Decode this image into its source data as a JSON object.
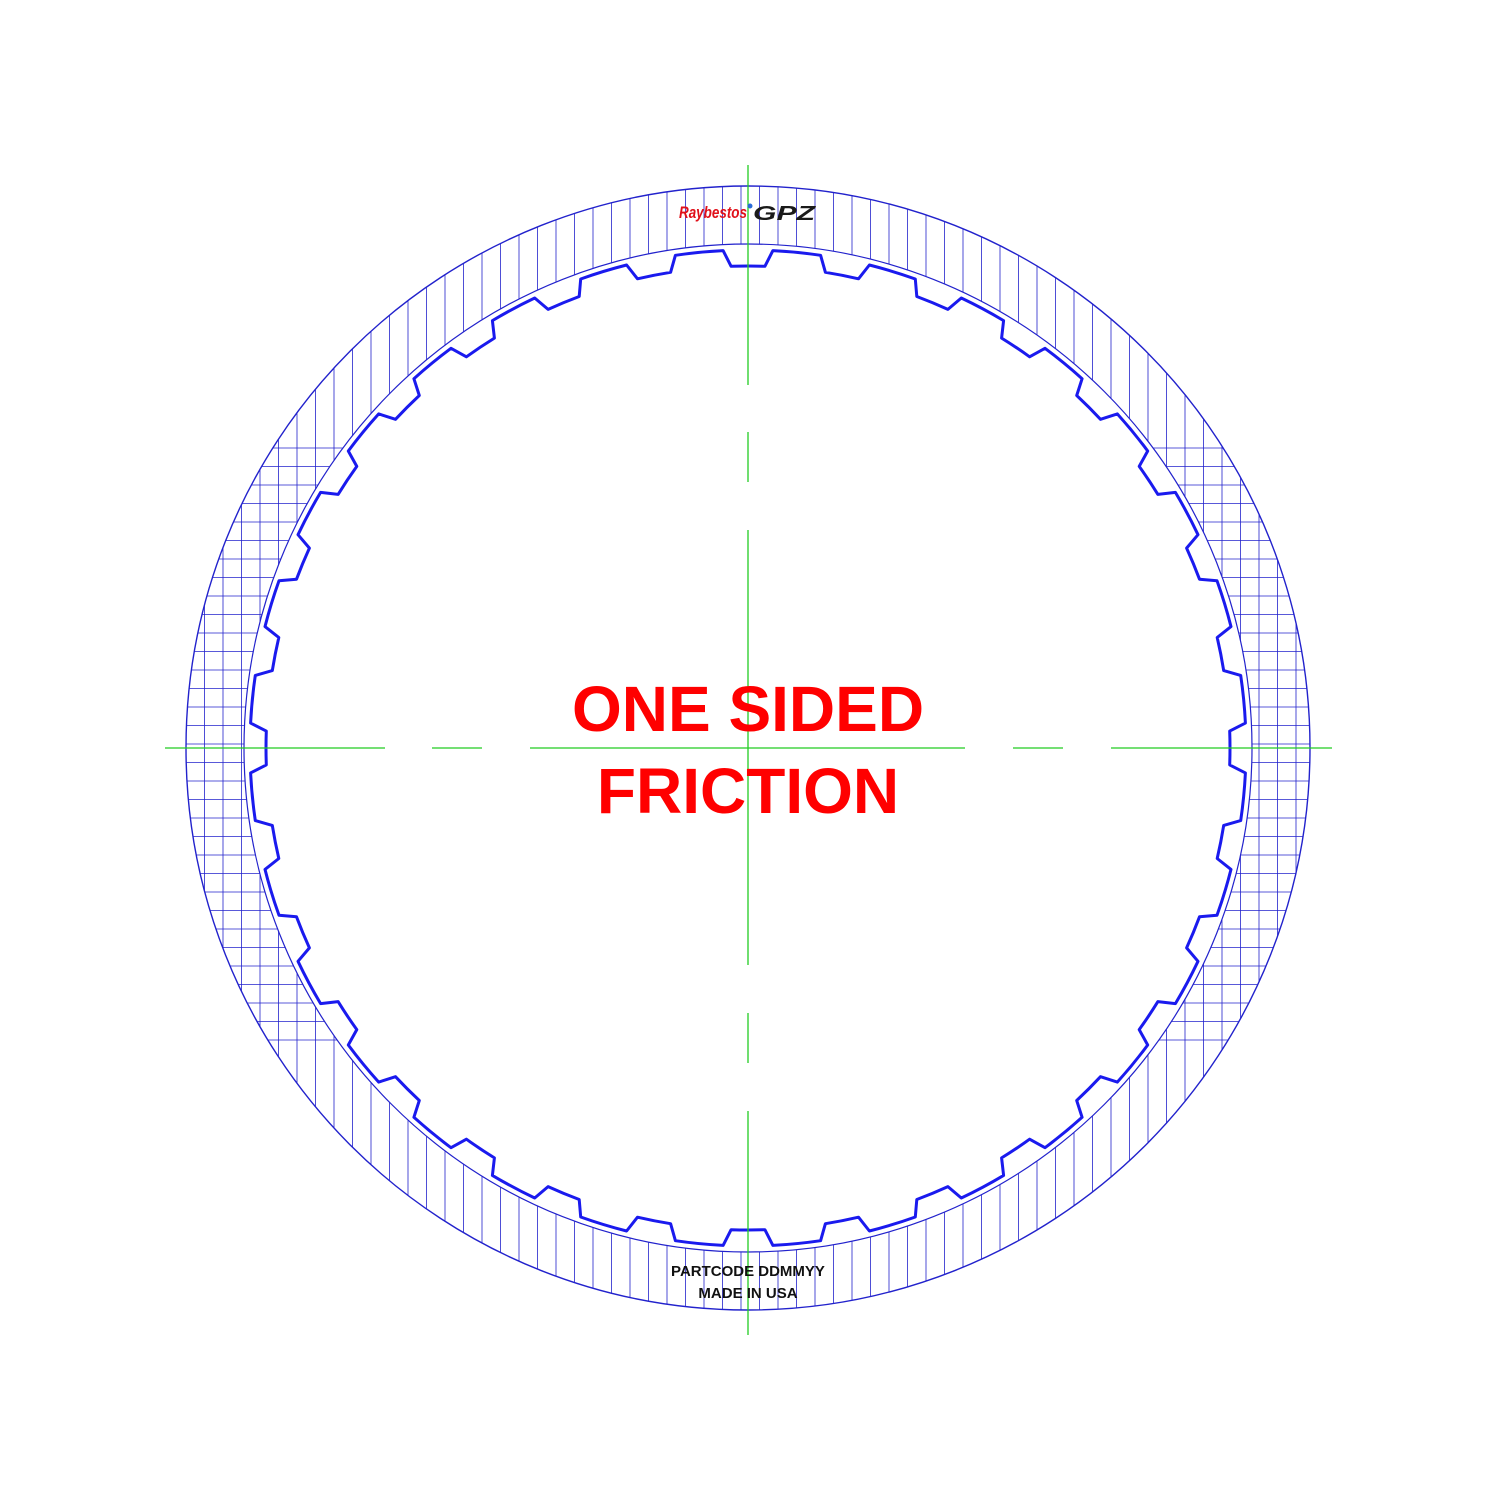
{
  "diagram": {
    "label_line1": "ONE SIDED",
    "label_line2": "FRICTION",
    "part_code": "PARTCODE DDMMYY",
    "made_in": "MADE IN USA",
    "logo": {
      "script": "Raybestos",
      "mark": "GPZ"
    },
    "part": {
      "type": "one-sided friction plate",
      "inner_spline_tooth_count": 32
    },
    "colors": {
      "outline": "#2222cc",
      "spline": "#1a1aee",
      "centerline": "#22cc22",
      "label": "#ff0000",
      "logo_red": "#e0101a"
    }
  }
}
